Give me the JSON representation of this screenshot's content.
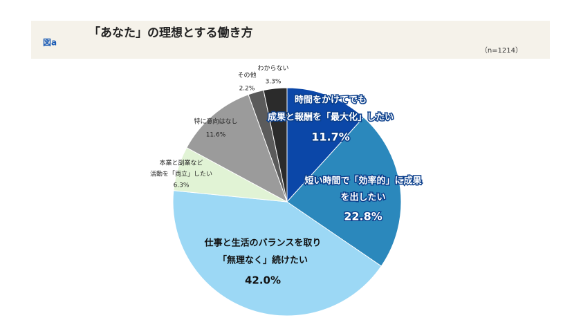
{
  "header": {
    "figure_label": "図a",
    "note": "（n=1214）"
  },
  "chart_data": {
    "type": "pie",
    "title": "「あなた」の理想とする働き方",
    "categories": [
      [
        "時間をかけてでも",
        "成果と報酬を「最大化」したい"
      ],
      [
        "短い時間で「効率的」に成果",
        "を出したい"
      ],
      [
        "仕事と生活のバランスを取り",
        "「無理なく」続けたい"
      ],
      [
        "本業と副業など",
        "活動を「両立」したい"
      ],
      [
        "特に意向はなし"
      ],
      [
        "その他"
      ],
      [
        "わからない"
      ]
    ],
    "values": [
      11.7,
      22.8,
      42.0,
      6.3,
      11.6,
      2.2,
      3.3
    ],
    "value_labels": [
      "11.7%",
      "22.8%",
      "42.0%",
      "6.3%",
      "11.6%",
      "2.2%",
      "3.3%"
    ],
    "colors": [
      "#0b47a8",
      "#2b88bc",
      "#9cd8f5",
      "#e1f3d5",
      "#9b9b9b",
      "#5b5b5b",
      "#2b2b2b"
    ]
  }
}
